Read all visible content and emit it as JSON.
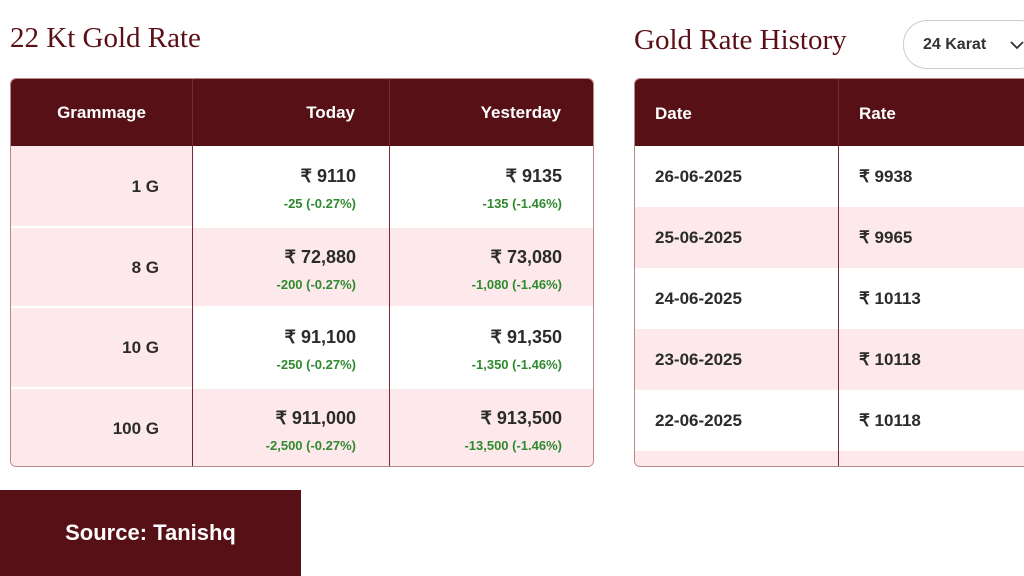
{
  "left": {
    "title": "22 Kt Gold Rate",
    "table": {
      "header": [
        "Grammage",
        "Today",
        "Yesterday"
      ],
      "rows": [
        {
          "grammage": "1 G",
          "today": "₹ 9110",
          "today_change": "-25 (-0.27%)",
          "yesterday": "₹ 9135",
          "yesterday_change": "-135 (-1.46%)"
        },
        {
          "grammage": "8 G",
          "today": "₹ 72,880",
          "today_change": "-200 (-0.27%)",
          "yesterday": "₹ 73,080",
          "yesterday_change": "-1,080 (-1.46%)"
        },
        {
          "grammage": "10 G",
          "today": "₹ 91,100",
          "today_change": "-250 (-0.27%)",
          "yesterday": "₹ 91,350",
          "yesterday_change": "-1,350 (-1.46%)"
        },
        {
          "grammage": "100 G",
          "today": "₹ 911,000",
          "today_change": "-2,500 (-0.27%)",
          "yesterday": "₹ 913,500",
          "yesterday_change": "-13,500 (-1.46%)"
        }
      ]
    }
  },
  "right": {
    "title": "Gold Rate History",
    "selector": "24 Karat",
    "table": {
      "header": [
        "Date",
        "Rate"
      ],
      "rows": [
        [
          "26-06-2025",
          "₹ 9938"
        ],
        [
          "25-06-2025",
          "₹ 9965"
        ],
        [
          "24-06-2025",
          "₹ 10113"
        ],
        [
          "23-06-2025",
          "₹ 10118"
        ],
        [
          "22-06-2025",
          "₹ 10118"
        ]
      ]
    }
  },
  "source": "Source: Tanishq"
}
